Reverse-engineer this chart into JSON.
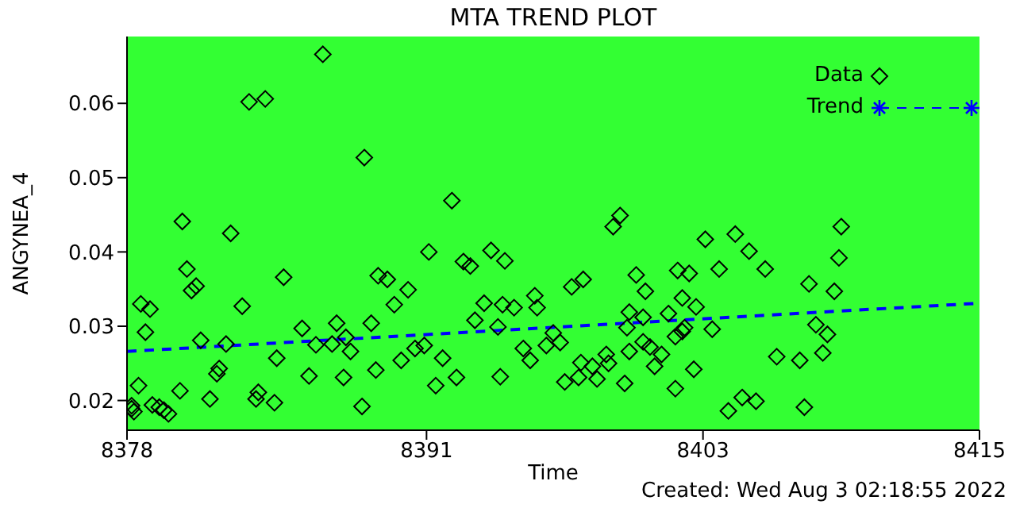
{
  "chart_data": {
    "type": "scatter",
    "title": "MTA TREND PLOT",
    "xlabel": "Time",
    "ylabel": "ANGYNEA_4",
    "annotations": [
      "Created: Wed Aug  3 02:18:55 2022"
    ],
    "xlim": [
      8378,
      8415
    ],
    "xticks": [
      8378,
      8391,
      8403,
      8415
    ],
    "ylim": [
      0.016,
      0.069
    ],
    "yticks": [
      0.02,
      0.03,
      0.04,
      0.05,
      0.06
    ],
    "grid": false,
    "legend": "top right",
    "series": [
      {
        "name": "Data",
        "marker": "diamond",
        "color": "#000000",
        "x": [
          8378.2,
          8378.6,
          8379.0,
          8378.8,
          8378.5,
          8378.2,
          8378.3,
          8379.1,
          8379.4,
          8379.6,
          8379.8,
          8380.3,
          8380.4,
          8380.6,
          8380.8,
          8381.0,
          8381.2,
          8381.6,
          8381.9,
          8382.0,
          8382.3,
          8382.5,
          8383.0,
          8383.3,
          8384.0,
          8383.6,
          8383.7,
          8384.4,
          8384.5,
          8384.8,
          8385.6,
          8385.9,
          8386.2,
          8386.5,
          8386.9,
          8387.1,
          8387.4,
          8387.5,
          8387.7,
          8388.2,
          8388.3,
          8388.6,
          8388.8,
          8388.9,
          8389.3,
          8389.6,
          8389.9,
          8390.2,
          8390.5,
          8390.9,
          8391.1,
          8391.4,
          8391.7,
          8392.1,
          8392.3,
          8392.6,
          8392.9,
          8393.1,
          8393.5,
          8393.8,
          8394.1,
          8394.2,
          8394.3,
          8394.4,
          8394.8,
          8395.2,
          8395.5,
          8395.7,
          8395.8,
          8396.2,
          8396.5,
          8396.8,
          8397.0,
          8397.3,
          8397.6,
          8397.7,
          8397.8,
          8398.2,
          8398.4,
          8398.8,
          8398.9,
          8399.1,
          8399.4,
          8399.6,
          8399.7,
          8399.8,
          8399.8,
          8400.1,
          8400.4,
          8400.4,
          8400.5,
          8400.7,
          8400.9,
          8401.2,
          8401.5,
          8401.8,
          8401.8,
          8401.9,
          8402.1,
          8402.1,
          8402.4,
          8402.6,
          8402.7,
          8402.2,
          8403.1,
          8403.4,
          8403.7,
          8404.1,
          8404.4,
          8404.7,
          8405.0,
          8405.3,
          8405.7,
          8406.2,
          8407.2,
          8407.4,
          8407.6,
          8407.9,
          8408.2,
          8408.4,
          8408.7,
          8408.9,
          8409.0
        ],
        "values": [
          0.0189,
          0.033,
          0.0323,
          0.0292,
          0.022,
          0.0193,
          0.0185,
          0.0194,
          0.0191,
          0.0187,
          0.0182,
          0.0213,
          0.0441,
          0.0377,
          0.0348,
          0.0354,
          0.0281,
          0.0202,
          0.0236,
          0.0243,
          0.0276,
          0.0425,
          0.0327,
          0.0602,
          0.0606,
          0.0202,
          0.0211,
          0.0197,
          0.0257,
          0.0366,
          0.0297,
          0.0233,
          0.0275,
          0.0666,
          0.0276,
          0.0304,
          0.0231,
          0.0285,
          0.0266,
          0.0192,
          0.0527,
          0.0304,
          0.0241,
          0.0368,
          0.0363,
          0.0329,
          0.0254,
          0.0349,
          0.027,
          0.0274,
          0.04,
          0.022,
          0.0257,
          0.0469,
          0.0231,
          0.0387,
          0.0381,
          0.0308,
          0.0331,
          0.0402,
          0.0299,
          0.0232,
          0.0329,
          0.0388,
          0.0325,
          0.027,
          0.0254,
          0.0341,
          0.0325,
          0.0274,
          0.0291,
          0.0278,
          0.0225,
          0.0353,
          0.0231,
          0.0251,
          0.0363,
          0.0246,
          0.0229,
          0.0262,
          0.025,
          0.0434,
          0.0449,
          0.0223,
          0.0298,
          0.0319,
          0.0266,
          0.0369,
          0.0312,
          0.0279,
          0.0347,
          0.0272,
          0.0246,
          0.0262,
          0.0317,
          0.0286,
          0.0216,
          0.0375,
          0.0293,
          0.0338,
          0.0371,
          0.0242,
          0.0326,
          0.0298,
          0.0417,
          0.0296,
          0.0377,
          0.0186,
          0.0424,
          0.0204,
          0.0401,
          0.0199,
          0.0377,
          0.0259,
          0.0254,
          0.0191,
          0.0357,
          0.0302,
          0.0264,
          0.0289,
          0.0347,
          0.0392,
          0.0434
        ]
      },
      {
        "name": "Trend",
        "type": "line",
        "line_style": "dashed",
        "color": "#0000ff",
        "x": [
          8378,
          8415
        ],
        "values": [
          0.0266,
          0.0331
        ]
      }
    ]
  }
}
